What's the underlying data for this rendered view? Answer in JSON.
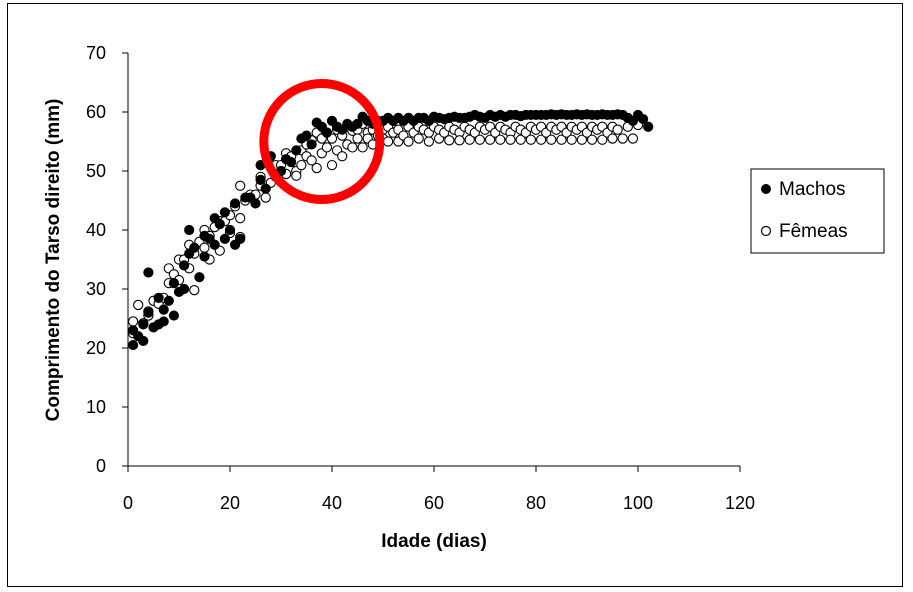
{
  "chart_data": {
    "type": "scatter",
    "xlabel": "Idade (dias)",
    "ylabel": "Comprimento do Tarso direito (mm)",
    "xlim": [
      0,
      120
    ],
    "ylim": [
      0,
      70
    ],
    "xticks": [
      0,
      20,
      40,
      60,
      80,
      100,
      120
    ],
    "yticks": [
      0,
      10,
      20,
      30,
      40,
      50,
      60,
      70
    ],
    "grid": false,
    "legend_position": "right",
    "highlight_circle": {
      "cx": 38,
      "cy": 55,
      "color": "#ff0000"
    },
    "series": [
      {
        "name": "Machos",
        "marker": "filled-circle",
        "color": "#000000",
        "points": [
          [
            1,
            20.5
          ],
          [
            1,
            23
          ],
          [
            2,
            22
          ],
          [
            3,
            21.2
          ],
          [
            3,
            24
          ],
          [
            4,
            32.8
          ],
          [
            4,
            26
          ],
          [
            5,
            23.5
          ],
          [
            6,
            24
          ],
          [
            6,
            28.5
          ],
          [
            7,
            26.5
          ],
          [
            7,
            24.5
          ],
          [
            8,
            28
          ],
          [
            9,
            25.5
          ],
          [
            9,
            31
          ],
          [
            10,
            29.5
          ],
          [
            11,
            34
          ],
          [
            11,
            30
          ],
          [
            12,
            40
          ],
          [
            12,
            36
          ],
          [
            13,
            37
          ],
          [
            14,
            32
          ],
          [
            15,
            35.5
          ],
          [
            15,
            39
          ],
          [
            16,
            38.5
          ],
          [
            17,
            37.5
          ],
          [
            17,
            42
          ],
          [
            18,
            41
          ],
          [
            19,
            38.5
          ],
          [
            19,
            43
          ],
          [
            20,
            40
          ],
          [
            21,
            37.5
          ],
          [
            21,
            44.5
          ],
          [
            22,
            38.5
          ],
          [
            23,
            45.5
          ],
          [
            24,
            45.5
          ],
          [
            25,
            44.5
          ],
          [
            26,
            51
          ],
          [
            26,
            48.5
          ],
          [
            27,
            47
          ],
          [
            28,
            52.5
          ],
          [
            29,
            49
          ],
          [
            30,
            50
          ],
          [
            31,
            52
          ],
          [
            32,
            51.5
          ],
          [
            33,
            53.5
          ],
          [
            34,
            55.5
          ],
          [
            35,
            56
          ],
          [
            36,
            54.5
          ],
          [
            37,
            58.2
          ],
          [
            38,
            57.5
          ],
          [
            39,
            56.5
          ],
          [
            40,
            58.5
          ],
          [
            41,
            57.5
          ],
          [
            42,
            57
          ],
          [
            43,
            58
          ],
          [
            44,
            57.5
          ],
          [
            45,
            58
          ],
          [
            46,
            59.2
          ],
          [
            47,
            58.5
          ],
          [
            48,
            58
          ],
          [
            49,
            58.5
          ],
          [
            50,
            58.5
          ],
          [
            51,
            59
          ],
          [
            52,
            58.5
          ],
          [
            53,
            59
          ],
          [
            54,
            58.5
          ],
          [
            55,
            59
          ],
          [
            56,
            58.5
          ],
          [
            57,
            59
          ],
          [
            58,
            59
          ],
          [
            59,
            58.5
          ],
          [
            60,
            59.2
          ],
          [
            61,
            59
          ],
          [
            62,
            58.8
          ],
          [
            63,
            59
          ],
          [
            64,
            59.2
          ],
          [
            65,
            59
          ],
          [
            66,
            59
          ],
          [
            67,
            59.2
          ],
          [
            68,
            59.5
          ],
          [
            69,
            59.2
          ],
          [
            70,
            59
          ],
          [
            71,
            59.5
          ],
          [
            72,
            59.2
          ],
          [
            73,
            59.5
          ],
          [
            74,
            59.2
          ],
          [
            75,
            59.5
          ],
          [
            76,
            59.5
          ],
          [
            77,
            59.3
          ],
          [
            78,
            59.5
          ],
          [
            79,
            59.5
          ],
          [
            80,
            59.5
          ],
          [
            81,
            59.5
          ],
          [
            82,
            59.5
          ],
          [
            83,
            59.6
          ],
          [
            84,
            59.5
          ],
          [
            85,
            59.6
          ],
          [
            86,
            59.5
          ],
          [
            87,
            59.5
          ],
          [
            88,
            59.6
          ],
          [
            89,
            59.5
          ],
          [
            90,
            59.6
          ],
          [
            91,
            59.5
          ],
          [
            92,
            59.5
          ],
          [
            93,
            59.6
          ],
          [
            94,
            59.5
          ],
          [
            95,
            59.5
          ],
          [
            96,
            59.6
          ],
          [
            97,
            59.5
          ],
          [
            98,
            59
          ],
          [
            99,
            58.5
          ],
          [
            100,
            59.5
          ],
          [
            101,
            58.8
          ],
          [
            102,
            57.5
          ]
        ]
      },
      {
        "name": "Fêmeas",
        "marker": "open-circle",
        "color": "#000000",
        "points": [
          [
            1,
            22.5
          ],
          [
            1,
            24.5
          ],
          [
            2,
            27.3
          ],
          [
            3,
            24.2
          ],
          [
            4,
            25.5
          ],
          [
            4,
            26.2
          ],
          [
            5,
            28
          ],
          [
            6,
            27.5
          ],
          [
            7,
            28.5
          ],
          [
            8,
            31
          ],
          [
            8,
            33.5
          ],
          [
            9,
            32.5
          ],
          [
            10,
            35
          ],
          [
            10,
            31.5
          ],
          [
            11,
            35
          ],
          [
            12,
            37.5
          ],
          [
            12,
            33.5
          ],
          [
            13,
            36
          ],
          [
            13,
            29.8
          ],
          [
            14,
            38
          ],
          [
            15,
            40
          ],
          [
            15,
            37
          ],
          [
            16,
            35
          ],
          [
            16,
            39
          ],
          [
            17,
            40.5
          ],
          [
            18,
            41.5
          ],
          [
            18,
            36.5
          ],
          [
            19,
            41.5
          ],
          [
            20,
            42.5
          ],
          [
            20,
            39.5
          ],
          [
            21,
            44
          ],
          [
            22,
            42
          ],
          [
            22,
            47.5
          ],
          [
            22,
            38.8
          ],
          [
            23,
            45
          ],
          [
            24,
            46
          ],
          [
            25,
            46
          ],
          [
            26,
            49
          ],
          [
            26,
            47.5
          ],
          [
            27,
            45.5
          ],
          [
            28,
            48
          ],
          [
            29,
            51
          ],
          [
            30,
            51
          ],
          [
            31,
            53
          ],
          [
            31,
            49.5
          ],
          [
            32,
            52.5
          ],
          [
            33,
            50
          ],
          [
            33,
            49.2
          ],
          [
            34,
            53.5
          ],
          [
            34,
            51
          ],
          [
            35,
            54.5
          ],
          [
            35,
            52.5
          ],
          [
            36,
            55.2
          ],
          [
            36,
            51.8
          ],
          [
            37,
            56.5
          ],
          [
            37,
            50.5
          ],
          [
            38,
            55.5
          ],
          [
            38,
            53
          ],
          [
            39,
            56.5
          ],
          [
            39,
            54
          ],
          [
            40,
            55.5
          ],
          [
            40,
            51
          ],
          [
            41,
            57
          ],
          [
            41,
            53.5
          ],
          [
            42,
            56
          ],
          [
            42,
            52.5
          ],
          [
            43,
            57.5
          ],
          [
            43,
            54.5
          ],
          [
            44,
            56.8
          ],
          [
            44,
            54
          ],
          [
            45,
            57
          ],
          [
            45,
            55.5
          ],
          [
            46,
            58
          ],
          [
            46,
            54
          ],
          [
            47,
            56.5
          ],
          [
            47,
            55.5
          ],
          [
            48,
            57
          ],
          [
            48,
            54.5
          ],
          [
            49,
            56
          ],
          [
            50,
            57
          ],
          [
            50,
            55.5
          ],
          [
            51,
            57.5
          ],
          [
            51,
            55
          ],
          [
            52,
            56.5
          ],
          [
            53,
            57
          ],
          [
            53,
            55
          ],
          [
            54,
            56
          ],
          [
            55,
            57.5
          ],
          [
            55,
            55
          ],
          [
            56,
            56.5
          ],
          [
            57,
            57.5
          ],
          [
            57,
            55.5
          ],
          [
            58,
            57
          ],
          [
            59,
            56.5
          ],
          [
            59,
            55
          ],
          [
            60,
            57.5
          ],
          [
            61,
            57
          ],
          [
            61,
            55.5
          ],
          [
            62,
            56.5
          ],
          [
            63,
            57.5
          ],
          [
            63,
            55.2
          ],
          [
            64,
            57
          ],
          [
            65,
            56.5
          ],
          [
            65,
            55.2
          ],
          [
            66,
            57.5
          ],
          [
            67,
            57
          ],
          [
            67,
            55.3
          ],
          [
            68,
            56.5
          ],
          [
            69,
            57.5
          ],
          [
            69,
            55.3
          ],
          [
            70,
            57
          ],
          [
            71,
            57.5
          ],
          [
            71,
            55.3
          ],
          [
            72,
            56.5
          ],
          [
            73,
            57.5
          ],
          [
            73,
            55.3
          ],
          [
            74,
            57
          ],
          [
            75,
            56.5
          ],
          [
            75,
            55.3
          ],
          [
            76,
            57.5
          ],
          [
            77,
            57
          ],
          [
            77,
            55.3
          ],
          [
            78,
            56.5
          ],
          [
            79,
            57.5
          ],
          [
            79,
            55.3
          ],
          [
            80,
            57
          ],
          [
            81,
            57.5
          ],
          [
            81,
            55.3
          ],
          [
            82,
            56.5
          ],
          [
            83,
            57.5
          ],
          [
            83,
            55.3
          ],
          [
            84,
            57
          ],
          [
            85,
            57.5
          ],
          [
            85,
            55.3
          ],
          [
            86,
            56.5
          ],
          [
            87,
            57.5
          ],
          [
            87,
            55.3
          ],
          [
            88,
            57
          ],
          [
            89,
            57.5
          ],
          [
            89,
            55.3
          ],
          [
            90,
            56.5
          ],
          [
            91,
            57.5
          ],
          [
            91,
            55.3
          ],
          [
            92,
            57
          ],
          [
            93,
            57.5
          ],
          [
            93,
            55.3
          ],
          [
            94,
            56.5
          ],
          [
            95,
            57.5
          ],
          [
            95,
            55.5
          ],
          [
            96,
            57
          ],
          [
            97,
            55.5
          ],
          [
            98,
            57.5
          ],
          [
            99,
            55.5
          ],
          [
            100,
            57.8
          ]
        ]
      }
    ]
  }
}
